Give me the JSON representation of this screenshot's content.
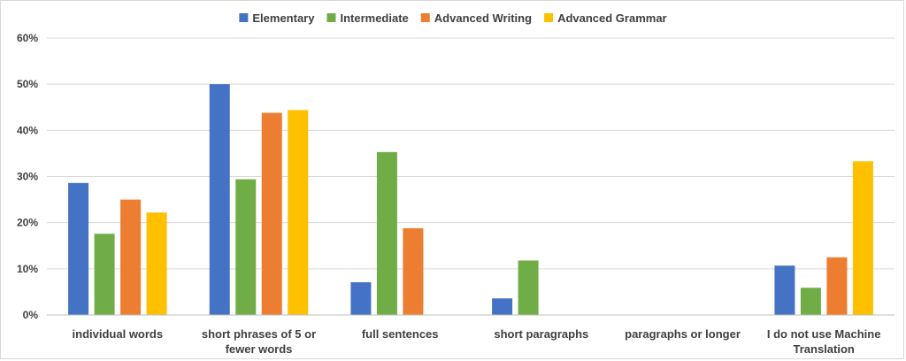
{
  "chart_data": {
    "type": "bar",
    "title": "",
    "xlabel": "",
    "ylabel": "",
    "ylim": [
      0,
      0.6
    ],
    "y_ticks": [
      0,
      0.1,
      0.2,
      0.3,
      0.4,
      0.5,
      0.6
    ],
    "y_tick_labels": [
      "0%",
      "10%",
      "20%",
      "30%",
      "40%",
      "50%",
      "60%"
    ],
    "grid": true,
    "legend": "top",
    "categories": [
      [
        "individual words"
      ],
      [
        "short phrases of 5 or",
        "fewer words"
      ],
      [
        "full sentences"
      ],
      [
        "short paragraphs"
      ],
      [
        "paragraphs or longer"
      ],
      [
        "I do not use Machine",
        "Translation"
      ]
    ],
    "series": [
      {
        "name": "Elementary",
        "color": "#4472c4",
        "values": [
          0.286,
          0.5,
          0.071,
          0.036,
          0,
          0.107
        ]
      },
      {
        "name": "Intermediate",
        "color": "#70ad47",
        "values": [
          0.176,
          0.294,
          0.353,
          0.118,
          0,
          0.059
        ]
      },
      {
        "name": "Advanced Writing",
        "color": "#ed7d31",
        "values": [
          0.25,
          0.438,
          0.188,
          0,
          0,
          0.125
        ]
      },
      {
        "name": "Advanced Grammar",
        "color": "#ffc000",
        "values": [
          0.222,
          0.444,
          0,
          0,
          0,
          0.333
        ]
      }
    ]
  }
}
